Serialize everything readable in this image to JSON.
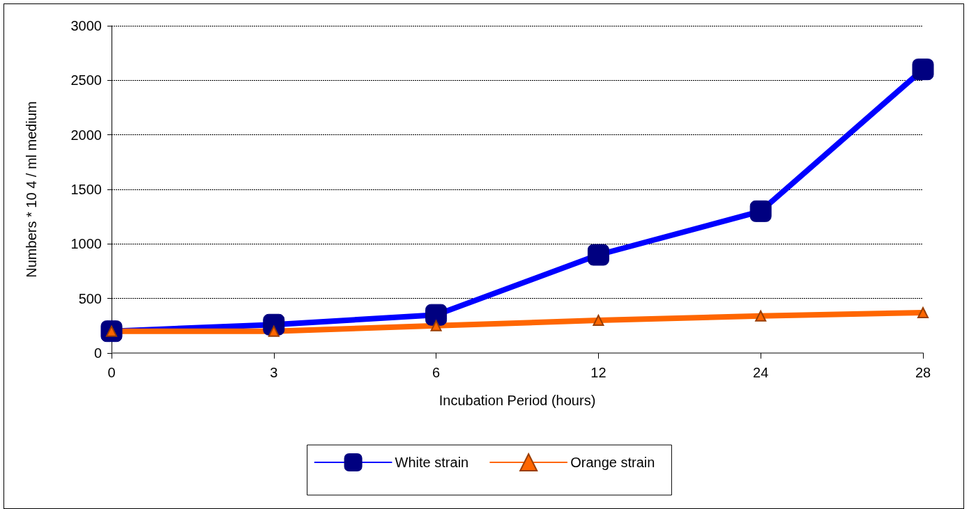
{
  "chart_data": {
    "type": "line",
    "xlabel": "Incubation Period (hours)",
    "ylabel": "Numbers * 10 4 / ml medium",
    "categories": [
      "0",
      "3",
      "6",
      "12",
      "24",
      "28"
    ],
    "series": [
      {
        "name": "White strain",
        "color": "#0000ff",
        "marker": "square",
        "values": [
          200,
          260,
          350,
          900,
          1300,
          2600
        ]
      },
      {
        "name": "Orange strain",
        "color": "#ff6600",
        "marker": "triangle",
        "values": [
          200,
          200,
          250,
          300,
          340,
          370
        ]
      }
    ],
    "ylim": [
      0,
      3000
    ],
    "yticks": [
      0,
      500,
      1000,
      1500,
      2000,
      2500,
      3000
    ],
    "grid": "y",
    "legend": "bottom"
  }
}
